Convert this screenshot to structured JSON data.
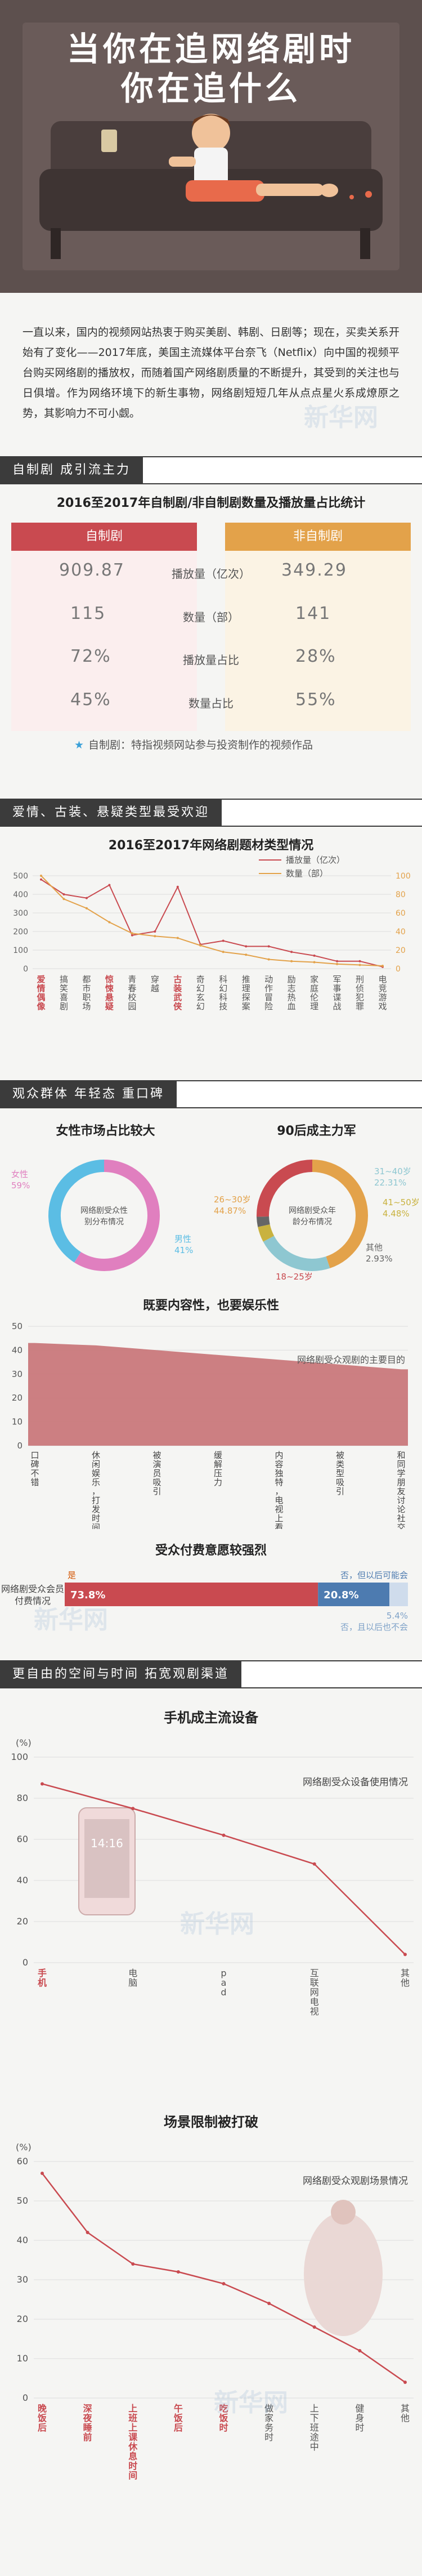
{
  "hero": {
    "title_line1": "当你在追网络剧时",
    "title_line2": "你在追什么"
  },
  "intro": "一直以来，国内的视频网站热衷于购买美剧、韩剧、日剧等；现在，买卖关系开始有了变化——2017年底，美国主流媒体平台奈飞（Netflix）向中国的视频平台购买网络剧的播放权，而随着国产网络剧质量的不断提升，其受到的关注也与日俱增。作为网络环境下的新生事物，网络剧短短几年从点点星火系成燎原之势，其影响力不可小觑。",
  "sections": {
    "s1": "自制剧 成引流主力",
    "s2": "爱情、古装、悬疑类型最受欢迎",
    "s3": "观众群体 年轻态 重口碑",
    "s4": "更自由的空间与时间 拓宽观剧渠道"
  },
  "table1": {
    "title": "2016至2017年自制剧/非自制剧数量及播放量占比统计",
    "left_header": "自制剧",
    "right_header": "非自制剧",
    "rows": [
      {
        "label": "播放量（亿次）",
        "left": "909.87",
        "right": "349.29"
      },
      {
        "label": "数量（部）",
        "left": "115",
        "right": "141"
      },
      {
        "label": "播放量占比",
        "left": "72%",
        "right": "28%"
      },
      {
        "label": "数量占比",
        "left": "45%",
        "right": "55%"
      }
    ],
    "note": "自制剧：特指视频网站参与投资制作的视频作品"
  },
  "colors": {
    "red": "#c94a50",
    "orange": "#e3a24a",
    "dark": "#3b3b3b",
    "pink": "#e07fbf",
    "blue": "#5bbde4",
    "olive": "#c9b23f"
  },
  "chart_data": [
    {
      "type": "line",
      "title": "2016至2017年网络剧题材类型情况",
      "categories": [
        "爱情偶像",
        "搞笑喜剧",
        "都市职场",
        "惊悚悬疑",
        "青春校园",
        "穿越",
        "古装武侠",
        "奇幻玄幻",
        "科幻科技",
        "推理探案",
        "动作冒险",
        "励志热血",
        "家庭伦理",
        "军事谍战",
        "刑侦犯罪",
        "电竞游戏"
      ],
      "highlight": [
        "爱情偶像",
        "惊悚悬疑",
        "古装武侠"
      ],
      "series": [
        {
          "name": "播放量（亿次）",
          "axis": "left",
          "values": [
            480,
            400,
            380,
            450,
            180,
            200,
            440,
            130,
            150,
            120,
            120,
            90,
            70,
            40,
            40,
            10
          ]
        },
        {
          "name": "数量（部）",
          "axis": "right",
          "values": [
            100,
            75,
            65,
            50,
            38,
            35,
            33,
            25,
            18,
            15,
            10,
            8,
            7,
            5,
            4,
            3
          ]
        }
      ],
      "ylim": [
        0,
        500
      ],
      "y2lim": [
        0,
        100
      ],
      "yticks": [
        0,
        100,
        200,
        300,
        400,
        500
      ],
      "y2ticks": [
        0,
        20,
        40,
        60,
        80,
        100
      ]
    },
    {
      "type": "pie",
      "title": "女性市场占比较大",
      "center_label": "网络剧受众性别分布情况",
      "slices": [
        {
          "label": "女性",
          "value": 59,
          "display": "59%"
        },
        {
          "label": "男性",
          "value": 41,
          "display": "41%"
        }
      ]
    },
    {
      "type": "pie",
      "title": "90后成主力军",
      "center_label": "网络剧受众年龄分布情况",
      "slices": [
        {
          "label": "26~30岁",
          "value": 44.87,
          "display": "44.87%"
        },
        {
          "label": "31~40岁",
          "value": 22.31,
          "display": "22.31%"
        },
        {
          "label": "41~50岁",
          "value": 4.48,
          "display": "4.48%"
        },
        {
          "label": "其他",
          "value": 2.93,
          "display": "2.93%"
        },
        {
          "label": "18~25岁",
          "value": 25.41,
          "display": "25.41%"
        }
      ]
    },
    {
      "type": "area",
      "title": "既要内容性，也要娱乐性",
      "series_label": "网络剧受众观剧的主要目的",
      "categories": [
        "口碑不错",
        "休闲娱乐，打发时间",
        "被演员吸引",
        "缓解压力",
        "内容独特，电视上看不到",
        "被类型吸引",
        "和同学朋友讨论社交"
      ],
      "values": [
        43,
        42,
        40,
        38,
        36,
        34,
        32
      ],
      "ylim": [
        0,
        50
      ],
      "yticks": [
        0,
        10,
        20,
        30,
        40,
        50
      ]
    },
    {
      "type": "bar",
      "title": "受众付费意愿较强烈",
      "row_label": "网络剧受众会员付费情况",
      "segments": [
        {
          "label": "是",
          "value": 73.8,
          "display": "73.8%"
        },
        {
          "label": "否，但以后可能会",
          "value": 20.8,
          "display": "20.8%"
        },
        {
          "label": "否，且以后也不会",
          "value": 5.4,
          "display": "5.4%"
        }
      ]
    },
    {
      "type": "line",
      "title": "手机成主流设备",
      "series_label": "网络剧受众设备使用情况",
      "unit": "(%)",
      "categories": [
        "手机",
        "电脑",
        "pad",
        "互联网电视",
        "其他"
      ],
      "values": [
        87,
        75,
        62,
        48,
        4
      ],
      "ylim": [
        0,
        100
      ],
      "yticks": [
        0,
        20,
        40,
        60,
        80,
        100
      ],
      "phone_time": "14:16"
    },
    {
      "type": "line",
      "title": "场景限制被打破",
      "series_label": "网络剧受众观剧场景情况",
      "unit": "(%)",
      "categories": [
        "晚饭后",
        "深夜睡前",
        "上班上课休息时间",
        "午饭后",
        "吃饭时",
        "做家务时",
        "上下班途中",
        "健身时",
        "其他"
      ],
      "highlight": [
        "晚饭后",
        "深夜睡前",
        "上班上课休息时间",
        "午饭后",
        "吃饭时"
      ],
      "values": [
        57,
        42,
        34,
        32,
        29,
        24,
        18,
        12,
        4
      ],
      "ylim": [
        0,
        60
      ],
      "yticks": [
        0,
        10,
        20,
        30,
        40,
        50,
        60
      ]
    }
  ]
}
